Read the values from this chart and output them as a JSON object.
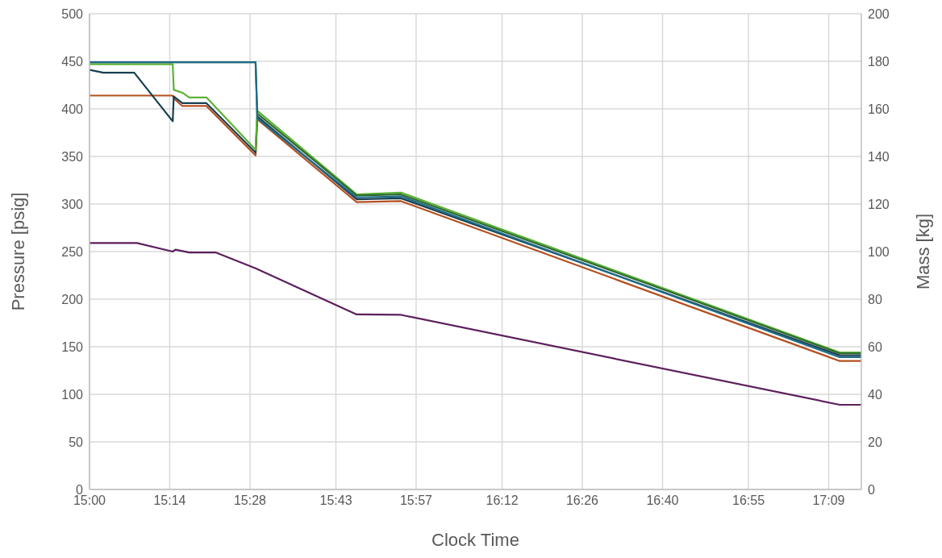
{
  "chart_data": {
    "type": "line",
    "xlabel": "Clock Time",
    "ylabel": "Pressure [psig]",
    "y2label": "Mass [kg]",
    "xlim": [
      15,
      17.245
    ],
    "xticks": [
      {
        "value": 15,
        "label": "15:00"
      },
      {
        "value": 15.2333,
        "label": "15:14"
      },
      {
        "value": 15.4667,
        "label": "15:28"
      },
      {
        "value": 15.7167,
        "label": "15:43"
      },
      {
        "value": 15.95,
        "label": "15:57"
      },
      {
        "value": 16.2,
        "label": "16:12"
      },
      {
        "value": 16.4333,
        "label": "16:26"
      },
      {
        "value": 16.6667,
        "label": "16:40"
      },
      {
        "value": 16.9167,
        "label": "16:55"
      },
      {
        "value": 17.15,
        "label": "17:09"
      }
    ],
    "ylim": [
      0,
      500
    ],
    "yticks": [
      0,
      50,
      100,
      150,
      200,
      250,
      300,
      350,
      400,
      450,
      500
    ],
    "y2lim": [
      0,
      200
    ],
    "y2ticks": [
      0,
      20,
      40,
      60,
      80,
      100,
      120,
      140,
      160,
      180,
      200
    ],
    "grid": true,
    "legend": false,
    "marker": "none",
    "line_style": "solid",
    "series": [
      {
        "color": "#b5501f",
        "x": [
          15,
          15.242,
          15.245,
          15.27,
          15.34,
          15.483,
          15.488,
          15.777,
          15.906,
          17.182,
          17.245
        ],
        "values": [
          414,
          414,
          411,
          403,
          403,
          351,
          389,
          302,
          303,
          135,
          135
        ]
      },
      {
        "color": "#173f4f",
        "x": [
          15,
          15.04,
          15.13,
          15.242,
          15.245,
          15.27,
          15.34,
          15.483,
          15.488,
          15.777,
          15.906,
          17.182,
          17.245
        ],
        "values": [
          441,
          438,
          438,
          387,
          413,
          406,
          406,
          354,
          392,
          305,
          306,
          141,
          141
        ]
      },
      {
        "color": "#5cb135",
        "x": [
          15,
          15.242,
          15.245,
          15.27,
          15.29,
          15.34,
          15.483,
          15.488,
          15.777,
          15.906,
          17.182,
          17.245
        ],
        "values": [
          447,
          447,
          420,
          417,
          412,
          412,
          357,
          398,
          310,
          312,
          144,
          144
        ]
      },
      {
        "color": "#2b6a2f",
        "x": [
          15,
          15.483,
          15.488,
          15.777,
          15.906,
          17.182,
          17.245
        ],
        "values": [
          449,
          449,
          395,
          309,
          310,
          143,
          143
        ]
      },
      {
        "color": "#1f6b8a",
        "x": [
          15,
          15.483,
          15.488,
          15.777,
          15.906,
          17.182,
          17.245
        ],
        "values": [
          449,
          449,
          390,
          307,
          308,
          139,
          139
        ]
      },
      {
        "color": "#5c1f5c",
        "axis": "y2",
        "x": [
          15,
          15.138,
          15.242,
          15.25,
          15.29,
          15.368,
          15.483,
          15.777,
          15.906,
          17.182,
          17.245
        ],
        "values": [
          103.6,
          103.6,
          100,
          100.8,
          99.6,
          99.6,
          93,
          73.6,
          73.4,
          35.6,
          35.6
        ]
      }
    ]
  }
}
